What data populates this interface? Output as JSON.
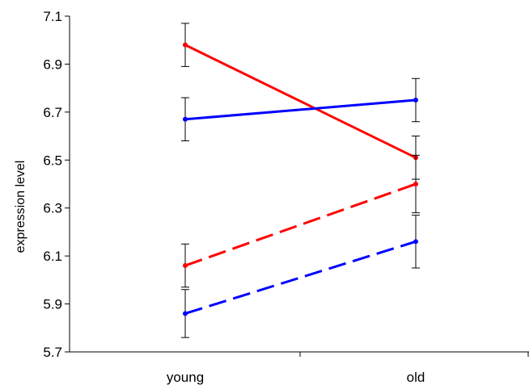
{
  "chart_data": {
    "type": "line",
    "title": "",
    "xlabel": "",
    "ylabel": "expression level",
    "categories": [
      "young",
      "old"
    ],
    "ylim": [
      5.7,
      7.1
    ],
    "yticks": [
      5.7,
      5.9,
      6.1,
      6.3,
      6.5,
      6.7,
      6.9,
      7.1
    ],
    "ytick_labels": [
      "5.7",
      "5.9",
      "6.1",
      "6.3",
      "6.5",
      "6.7",
      "6.9",
      "7.1"
    ],
    "grid": false,
    "legend": "none",
    "series": [
      {
        "color": "#ff0000",
        "style": "solid",
        "values": [
          6.98,
          6.51
        ],
        "err": [
          0.09,
          0.09
        ]
      },
      {
        "color": "#0000ff",
        "style": "solid",
        "values": [
          6.67,
          6.75
        ],
        "err": [
          0.09,
          0.09
        ]
      },
      {
        "color": "#ff0000",
        "style": "dashed",
        "values": [
          6.06,
          6.4
        ],
        "err": [
          0.09,
          0.12
        ]
      },
      {
        "color": "#0000ff",
        "style": "dashed",
        "values": [
          5.86,
          6.16
        ],
        "err": [
          0.1,
          0.11
        ]
      }
    ]
  }
}
